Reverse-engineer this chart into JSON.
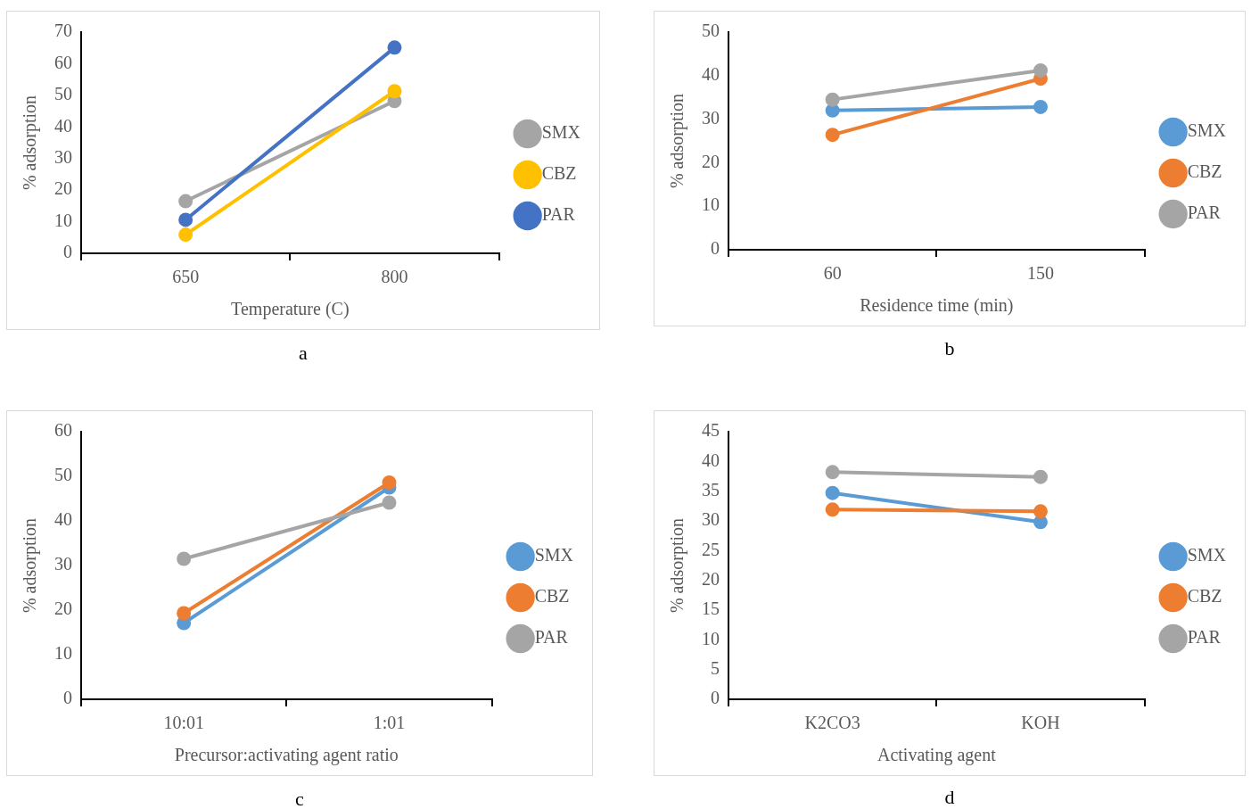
{
  "chart_data": [
    {
      "type": "line",
      "xlabel": "Temperature (C)",
      "ylabel": "% adsorption",
      "categories": [
        "650",
        "800"
      ],
      "ylim": [
        0,
        70
      ],
      "yticks": [
        0,
        10,
        20,
        30,
        40,
        50,
        60,
        70
      ],
      "grid": false,
      "legend": "right",
      "marker": "circle",
      "annotations": [
        "a"
      ],
      "series": [
        {
          "name": "SMX",
          "color": "#a5a5a5",
          "values": [
            16.5,
            48.2
          ]
        },
        {
          "name": "CBZ",
          "color": "#ffc000",
          "values": [
            5.9,
            51.3
          ]
        },
        {
          "name": "PAR",
          "color": "#4472c4",
          "values": [
            10.6,
            65.1
          ]
        }
      ]
    },
    {
      "type": "line",
      "xlabel": "Residence time (min)",
      "ylabel": "% adsorption",
      "categories": [
        "60",
        "150"
      ],
      "ylim": [
        0,
        50
      ],
      "yticks": [
        0,
        10,
        20,
        30,
        40,
        50
      ],
      "grid": false,
      "legend": "right",
      "marker": "circle",
      "annotations": [
        "b"
      ],
      "series": [
        {
          "name": "SMX",
          "color": "#5b9bd5",
          "values": [
            32.0,
            32.8
          ]
        },
        {
          "name": "CBZ",
          "color": "#ed7d31",
          "values": [
            26.4,
            39.3
          ]
        },
        {
          "name": "PAR",
          "color": "#a5a5a5",
          "values": [
            34.5,
            41.2
          ]
        }
      ]
    },
    {
      "type": "line",
      "xlabel": "Precursor:activating agent ratio",
      "ylabel": "% adsorption",
      "categories": [
        "10:01",
        "1:01"
      ],
      "ylim": [
        0,
        60
      ],
      "yticks": [
        0,
        10,
        20,
        30,
        40,
        50,
        60
      ],
      "grid": false,
      "legend": "right",
      "marker": "circle",
      "annotations": [
        "c"
      ],
      "series": [
        {
          "name": "SMX",
          "color": "#5b9bd5",
          "values": [
            17.1,
            47.5
          ]
        },
        {
          "name": "CBZ",
          "color": "#ed7d31",
          "values": [
            19.3,
            48.6
          ]
        },
        {
          "name": "PAR",
          "color": "#a5a5a5",
          "values": [
            31.5,
            44.1
          ]
        }
      ]
    },
    {
      "type": "line",
      "xlabel": "Activating agent",
      "ylabel": "% adsorption",
      "categories": [
        "K2CO3",
        "KOH"
      ],
      "ylim": [
        0,
        45
      ],
      "yticks": [
        0,
        5,
        10,
        15,
        20,
        25,
        30,
        35,
        40,
        45
      ],
      "grid": false,
      "legend": "right",
      "marker": "circle",
      "annotations": [
        "d"
      ],
      "series": [
        {
          "name": "SMX",
          "color": "#5b9bd5",
          "values": [
            34.7,
            29.8
          ]
        },
        {
          "name": "CBZ",
          "color": "#ed7d31",
          "values": [
            31.9,
            31.6
          ]
        },
        {
          "name": "PAR",
          "color": "#a5a5a5",
          "values": [
            38.2,
            37.4
          ]
        }
      ]
    }
  ]
}
